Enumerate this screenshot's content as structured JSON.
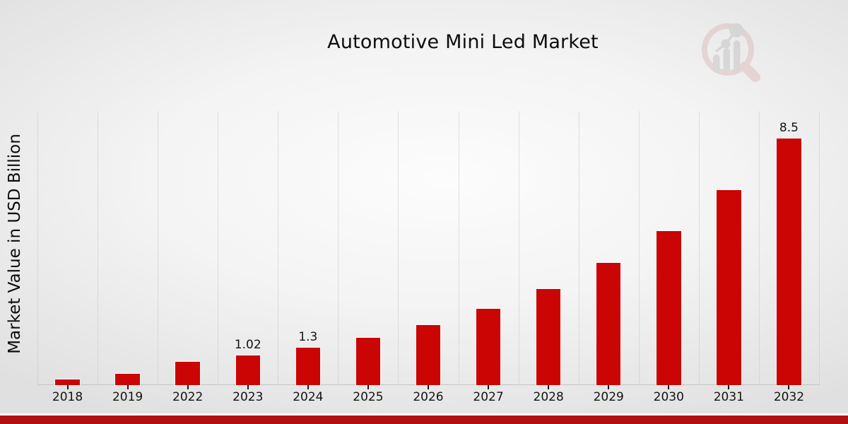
{
  "page_title": "Automotive Mini Led Market",
  "chart_data": {
    "type": "bar",
    "title": "Automotive Mini Led Market",
    "xlabel": "",
    "ylabel": "Market Value in USD Billion",
    "categories": [
      "2018",
      "2019",
      "2022",
      "2023",
      "2024",
      "2025",
      "2026",
      "2027",
      "2028",
      "2029",
      "2030",
      "2031",
      "2032"
    ],
    "values": [
      0.19,
      0.38,
      0.8,
      1.02,
      1.3,
      1.64,
      2.08,
      2.63,
      3.32,
      4.2,
      5.31,
      6.72,
      8.5
    ],
    "bar_labels": [
      "",
      "",
      "",
      "1.02",
      "1.3",
      "",
      "",
      "",
      "",
      "",
      "",
      "",
      "8.5"
    ],
    "ylim": [
      0,
      9.42
    ],
    "grid": "vertical dotted lines between categories, no horizontal gridlines, no y-axis tick labels",
    "legend_position": "none",
    "bar_color": "#cb0404"
  },
  "icons": {
    "watermark": "magnifier-growth-chart-logo"
  },
  "colors": {
    "bar": "#cb0404",
    "bottom_strip": "#b11010",
    "gridline": "#c5c5c5",
    "axis_line": "#c3c3c3",
    "tick": "#1a1a1a",
    "text": "#141414",
    "logo_ring": "#dcbcbc",
    "logo_gray": "#c3c3c3"
  }
}
